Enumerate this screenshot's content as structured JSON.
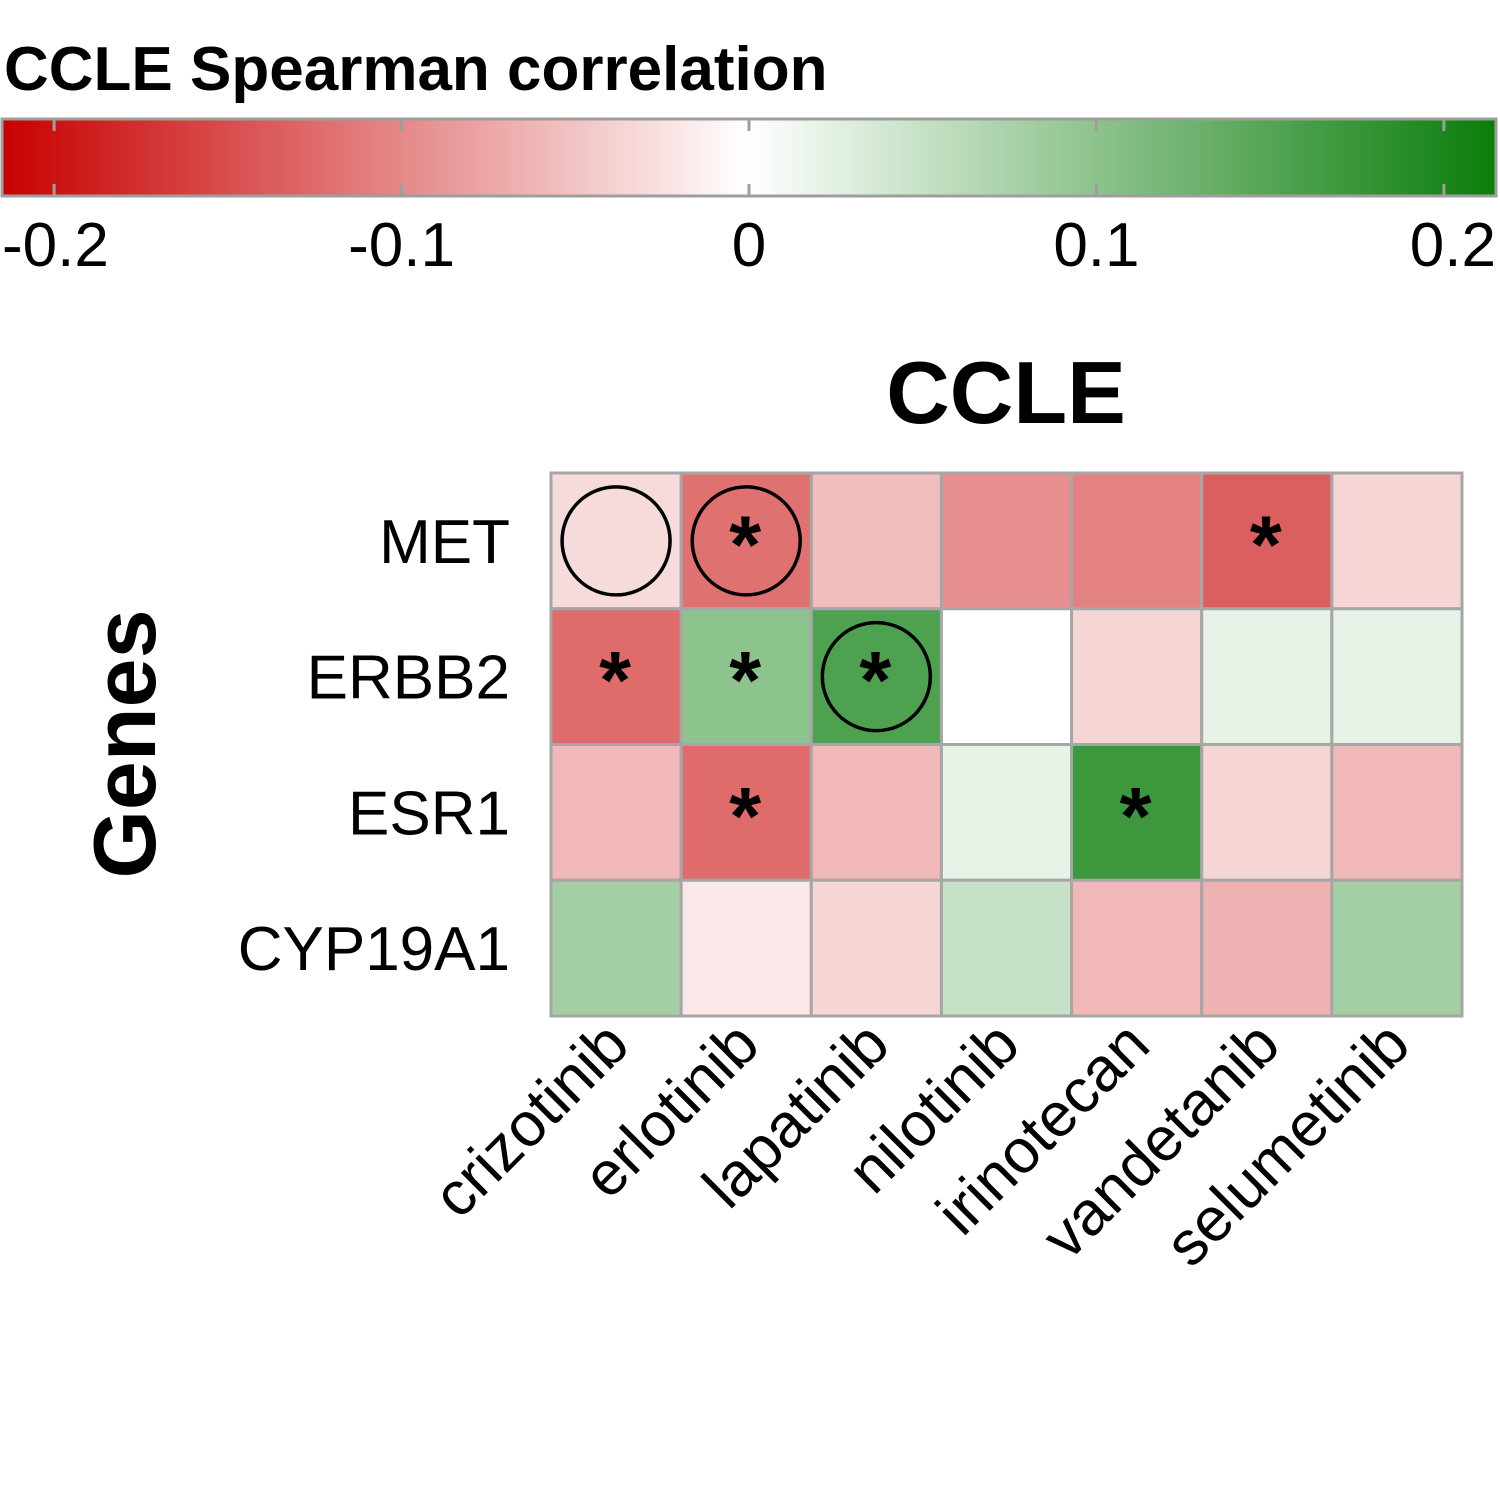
{
  "chart_data": {
    "type": "heatmap",
    "title": "CCLE",
    "ylabel": "Genes",
    "legend": {
      "title": "CCLE Spearman correlation",
      "range": [
        -0.215,
        0.215
      ],
      "ticks": [
        "-0.2",
        "-0.1",
        "0",
        "0.1",
        "0.2"
      ],
      "tick_values": [
        -0.2,
        -0.1,
        0,
        0.1,
        0.2
      ],
      "colors": {
        "low": "#c80000",
        "mid": "#ffffff",
        "high": "#0a7d0a"
      },
      "position": "top"
    },
    "rows": [
      "MET",
      "ERBB2",
      "ESR1",
      "CYP19A1"
    ],
    "columns": [
      "crizotinib",
      "erlotinib",
      "lapatinib",
      "nilotinib",
      "irinotecan",
      "vandetanib",
      "selumetinib"
    ],
    "values": [
      [
        -0.03,
        -0.12,
        -0.055,
        -0.095,
        -0.105,
        -0.135,
        -0.035
      ],
      [
        -0.125,
        0.1,
        0.155,
        0.0,
        -0.035,
        0.02,
        0.02
      ],
      [
        -0.06,
        -0.125,
        -0.06,
        0.02,
        0.17,
        -0.035,
        -0.06
      ],
      [
        0.08,
        -0.02,
        -0.035,
        0.05,
        -0.06,
        -0.065,
        0.08
      ]
    ],
    "significant": [
      [
        0,
        1,
        0,
        0,
        0,
        1,
        0
      ],
      [
        1,
        1,
        1,
        0,
        0,
        0,
        0
      ],
      [
        0,
        1,
        0,
        0,
        1,
        0,
        0
      ],
      [
        0,
        0,
        0,
        0,
        0,
        0,
        0
      ]
    ],
    "highlighted": [
      [
        0,
        0
      ],
      [
        0,
        1
      ],
      [
        1,
        2
      ]
    ],
    "significance_marker": "*",
    "grid": true
  }
}
